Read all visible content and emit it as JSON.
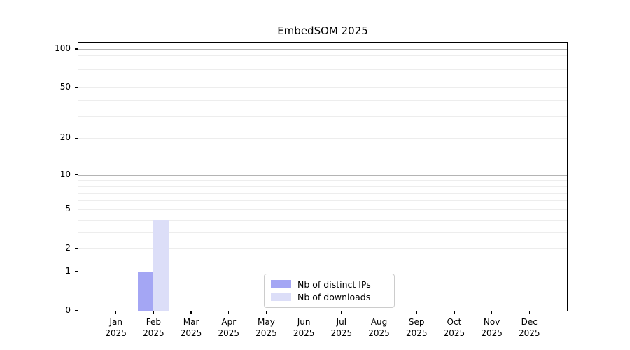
{
  "title": "EmbedSOM 2025",
  "chart_data": {
    "type": "bar",
    "title": "EmbedSOM 2025",
    "x_categories": [
      {
        "month": "Jan",
        "year": "2025"
      },
      {
        "month": "Feb",
        "year": "2025"
      },
      {
        "month": "Mar",
        "year": "2025"
      },
      {
        "month": "Apr",
        "year": "2025"
      },
      {
        "month": "May",
        "year": "2025"
      },
      {
        "month": "Jun",
        "year": "2025"
      },
      {
        "month": "Jul",
        "year": "2025"
      },
      {
        "month": "Aug",
        "year": "2025"
      },
      {
        "month": "Sep",
        "year": "2025"
      },
      {
        "month": "Oct",
        "year": "2025"
      },
      {
        "month": "Nov",
        "year": "2025"
      },
      {
        "month": "Dec",
        "year": "2025"
      }
    ],
    "series": [
      {
        "name": "Nb of distinct IPs",
        "color": "#a4a6f4",
        "values": [
          0,
          1,
          0,
          0,
          0,
          0,
          0,
          0,
          0,
          0,
          0,
          0
        ]
      },
      {
        "name": "Nb of downloads",
        "color": "#dcdef8",
        "values": [
          0,
          4,
          0,
          0,
          0,
          0,
          0,
          0,
          0,
          0,
          0,
          0
        ]
      }
    ],
    "yscale": "log1p",
    "ylim": [
      0,
      112
    ],
    "yticks": [
      0,
      1,
      2,
      5,
      10,
      20,
      50,
      100
    ],
    "grid_major": [
      1,
      10,
      100
    ],
    "grid_minor": [
      2,
      3,
      4,
      5,
      6,
      7,
      8,
      9,
      20,
      30,
      40,
      50,
      60,
      70,
      80,
      90
    ],
    "legend_position": "lower center",
    "grid": true,
    "colors": {
      "major_grid": "#b4b4b4",
      "minor_grid": "#ededed",
      "axis": "#000000",
      "background": "#ffffff",
      "legend_border": "#cccccc"
    }
  }
}
